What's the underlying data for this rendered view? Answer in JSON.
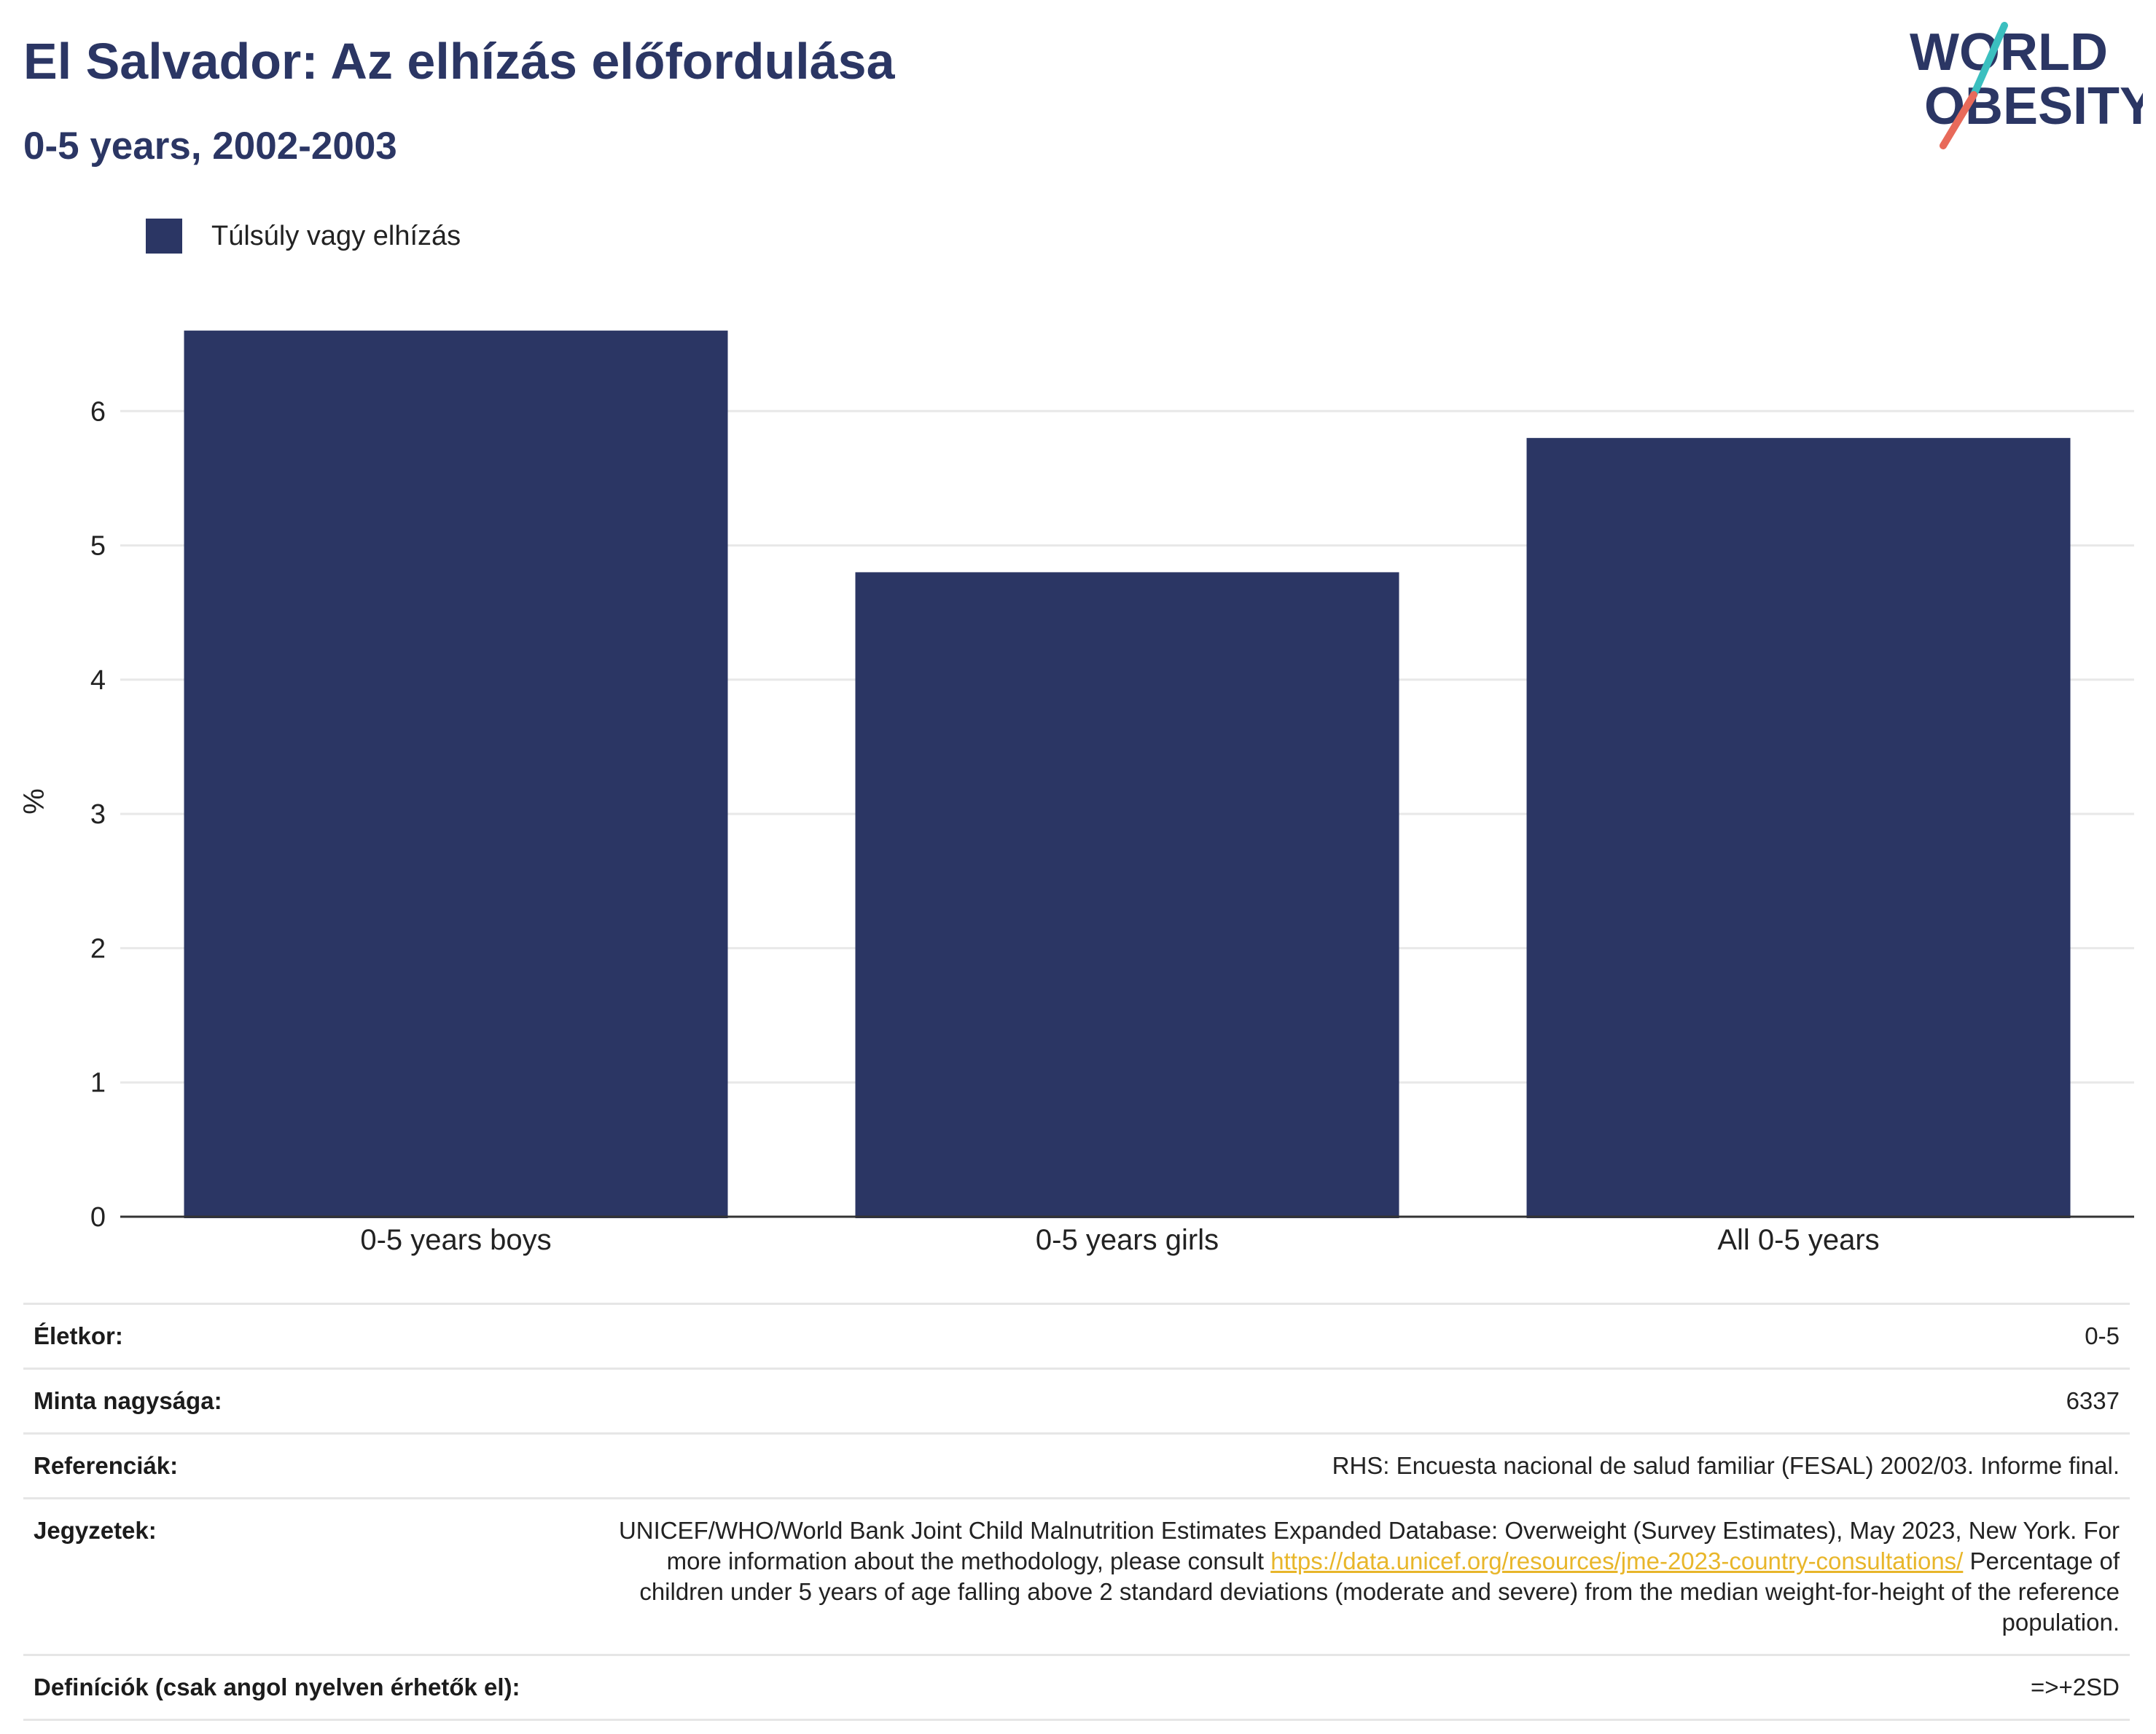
{
  "header": {
    "title": "El Salvador: Az elhízás előfordulása",
    "subtitle": "0-5 years, 2002-2003"
  },
  "logo": {
    "line1": "WORLD",
    "line2": "OBESITY",
    "colors": {
      "text": "#2b3664",
      "slash_top": "#3bbfbf",
      "slash_bottom": "#e86a5a"
    }
  },
  "legend": {
    "label": "Túlsúly vagy elhízás",
    "color": "#2b3664"
  },
  "chart_data": {
    "type": "bar",
    "categories": [
      "0-5 years boys",
      "0-5 years girls",
      "All 0-5 years"
    ],
    "series": [
      {
        "name": "Túlsúly vagy elhízás",
        "values": [
          6.6,
          4.8,
          5.8
        ],
        "color": "#2b3664"
      }
    ],
    "ylabel": "%",
    "xlabel": "",
    "ylim": [
      0,
      7
    ],
    "yticks": [
      0,
      1,
      2,
      3,
      4,
      5,
      6
    ],
    "grid": true,
    "legend_position": "top-left"
  },
  "info": {
    "age_label": "Életkor:",
    "age_value": "0-5",
    "sample_label": "Minta nagysága:",
    "sample_value": "6337",
    "references_label": "Referenciák:",
    "references_value": "RHS: Encuesta nacional de salud familiar (FESAL) 2002/03. Informe final.",
    "notes_label": "Jegyzetek:",
    "notes_text1": "UNICEF/WHO/World Bank Joint Child Malnutrition Estimates Expanded Database: Overweight (Survey Estimates), May 2023, New York. For more information about the methodology, please consult",
    "notes_link": "https://data.unicef.org/resources/jme-2023-country-consultations/",
    "notes_text2": "Percentage of children under 5 years of age falling above 2 standard deviations (moderate and severe) from the median weight-for-height of the reference population.",
    "definitions_label": "Definíciók (csak angol nyelven érhetők el):",
    "definitions_value": "=>+2SD"
  }
}
